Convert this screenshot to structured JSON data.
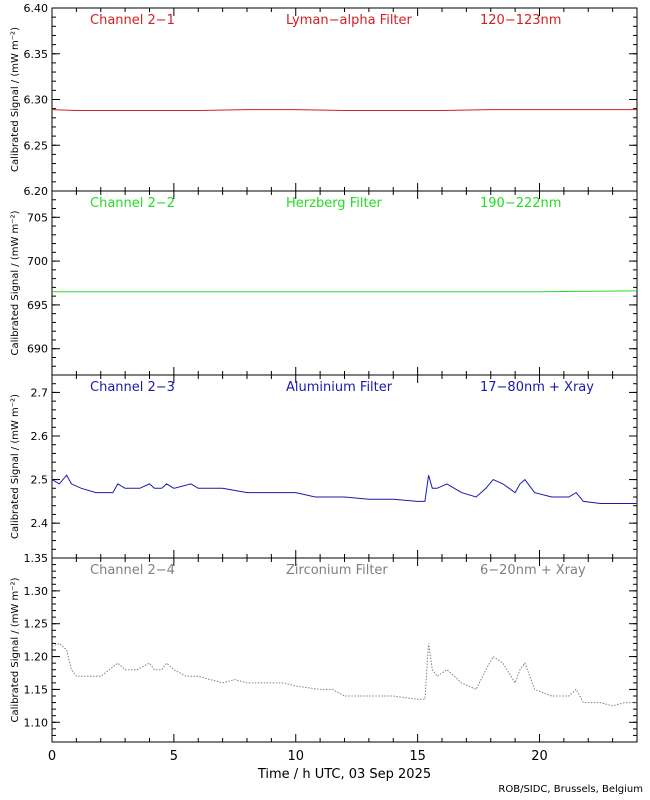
{
  "chart_data": [
    {
      "type": "line",
      "channel": "Channel 2−1",
      "filter": "Lyman−alpha Filter",
      "band": "120−123nm",
      "color": "#d42020",
      "ylabel": "Calibrated Signal / (mW m⁻²)",
      "ylim": [
        6.2,
        6.4
      ],
      "yticks": [
        "6.20",
        "6.25",
        "6.30",
        "6.35",
        "6.40"
      ],
      "x": [
        0,
        1,
        2,
        4,
        6,
        8,
        10,
        12,
        14,
        16,
        18,
        20,
        22,
        24
      ],
      "y": [
        6.289,
        6.288,
        6.288,
        6.288,
        6.288,
        6.289,
        6.289,
        6.288,
        6.288,
        6.288,
        6.289,
        6.289,
        6.289,
        6.289
      ]
    },
    {
      "type": "line",
      "channel": "Channel 2−2",
      "filter": "Herzberg Filter",
      "band": "190−222nm",
      "color": "#22dd22",
      "ylabel": "Calibrated Signal / (mW m⁻²)",
      "ylim": [
        687,
        708
      ],
      "yticks": [
        "690",
        "695",
        "700",
        "705"
      ],
      "x": [
        0,
        4,
        8,
        12,
        16,
        20,
        24
      ],
      "y": [
        696.5,
        696.5,
        696.5,
        696.5,
        696.5,
        696.5,
        696.6
      ]
    },
    {
      "type": "line",
      "channel": "Channel 2−3",
      "filter": "Aluminium Filter",
      "band": "17−80nm + Xray",
      "color": "#1a1aaa",
      "ylabel": "Calibrated Signal / (mW m⁻²)",
      "ylim": [
        2.32,
        2.74
      ],
      "yticks": [
        "2.4",
        "2.5",
        "2.6",
        "2.7"
      ],
      "x": [
        0,
        0.3,
        0.6,
        0.8,
        1.2,
        1.8,
        2.5,
        2.7,
        3.0,
        3.6,
        4.0,
        4.2,
        4.5,
        4.7,
        5.0,
        5.7,
        6.0,
        7.0,
        8.0,
        9.0,
        10.0,
        10.8,
        11.5,
        12.0,
        13.0,
        14.0,
        15.0,
        15.3,
        15.45,
        15.6,
        15.8,
        16.2,
        16.8,
        17.4,
        17.8,
        18.1,
        18.5,
        19.0,
        19.2,
        19.4,
        19.8,
        20.5,
        21.2,
        21.5,
        21.8,
        22.5,
        23.0,
        23.5,
        24.0
      ],
      "y": [
        2.5,
        2.49,
        2.51,
        2.49,
        2.48,
        2.47,
        2.47,
        2.49,
        2.48,
        2.48,
        2.49,
        2.48,
        2.48,
        2.49,
        2.48,
        2.49,
        2.48,
        2.48,
        2.47,
        2.47,
        2.47,
        2.46,
        2.46,
        2.46,
        2.455,
        2.455,
        2.45,
        2.45,
        2.51,
        2.48,
        2.48,
        2.49,
        2.47,
        2.46,
        2.48,
        2.5,
        2.49,
        2.47,
        2.49,
        2.5,
        2.47,
        2.46,
        2.46,
        2.47,
        2.45,
        2.445,
        2.445,
        2.445,
        2.445
      ]
    },
    {
      "type": "line",
      "channel": "Channel 2−4",
      "filter": "Zirconium Filter",
      "band": "6−20nm + Xray",
      "color": "#808080",
      "ylabel": "Calibrated Signal / (mW m⁻²)",
      "ylim": [
        1.07,
        1.35
      ],
      "yticks": [
        "1.10",
        "1.15",
        "1.20",
        "1.25",
        "1.30",
        "1.35"
      ],
      "x": [
        0,
        0.3,
        0.6,
        0.8,
        1.0,
        1.5,
        2.0,
        2.7,
        3.0,
        3.5,
        4.0,
        4.2,
        4.5,
        4.7,
        5.0,
        5.5,
        6.0,
        7.0,
        7.5,
        8.0,
        9.0,
        9.5,
        10.0,
        11.0,
        11.5,
        12.0,
        13.0,
        14.0,
        15.0,
        15.3,
        15.45,
        15.6,
        15.8,
        16.2,
        16.8,
        17.4,
        17.8,
        18.1,
        18.5,
        19.0,
        19.2,
        19.4,
        19.8,
        20.5,
        21.2,
        21.5,
        21.8,
        22.5,
        23.0,
        23.5,
        24.0
      ],
      "y": [
        1.215,
        1.22,
        1.21,
        1.18,
        1.17,
        1.17,
        1.17,
        1.19,
        1.18,
        1.18,
        1.19,
        1.18,
        1.18,
        1.19,
        1.18,
        1.17,
        1.17,
        1.16,
        1.165,
        1.16,
        1.16,
        1.16,
        1.155,
        1.15,
        1.15,
        1.14,
        1.14,
        1.14,
        1.135,
        1.135,
        1.22,
        1.18,
        1.17,
        1.18,
        1.16,
        1.15,
        1.18,
        1.2,
        1.19,
        1.16,
        1.18,
        1.19,
        1.15,
        1.14,
        1.14,
        1.15,
        1.13,
        1.13,
        1.125,
        1.13,
        1.13
      ]
    }
  ],
  "xaxis": {
    "label": "Time / h UTC, 03 Sep 2025",
    "xlim": [
      0,
      24
    ],
    "ticks": [
      "0",
      "5",
      "10",
      "15",
      "20"
    ]
  },
  "credit": "ROB/SIDC, Brussels, Belgium"
}
